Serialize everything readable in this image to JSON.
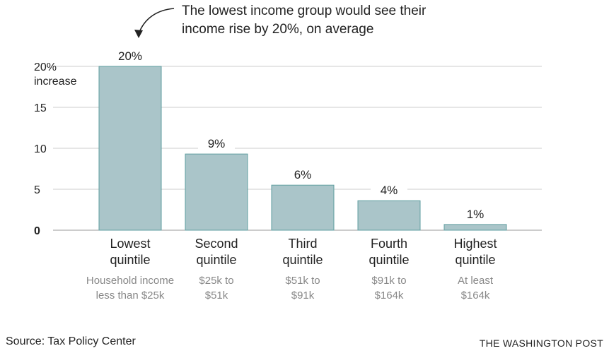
{
  "chart_data": {
    "type": "bar",
    "categories": [
      "Lowest quintile",
      "Second quintile",
      "Third quintile",
      "Fourth quintile",
      "Highest quintile"
    ],
    "category_lines": [
      [
        "Lowest",
        "quintile"
      ],
      [
        "Second",
        "quintile"
      ],
      [
        "Third",
        "quintile"
      ],
      [
        "Fourth",
        "quintile"
      ],
      [
        "Highest",
        "quintile"
      ]
    ],
    "sublabels": [
      [
        "Household income",
        "less than $25k"
      ],
      [
        "$25k to",
        "$51k"
      ],
      [
        "$51k to",
        "$91k"
      ],
      [
        "$91k to",
        "$164k"
      ],
      [
        "At least",
        "$164k"
      ]
    ],
    "values": [
      20,
      9.3,
      5.5,
      3.6,
      0.7
    ],
    "data_labels": [
      "20%",
      "9%",
      "6%",
      "4%",
      "1%"
    ],
    "yticks": [
      0,
      5,
      10,
      15,
      20
    ],
    "ytick_labels": [
      "0",
      "5",
      "10",
      "15",
      "20%"
    ],
    "ylabel": "increase",
    "ylim": [
      0,
      20
    ],
    "grid": true,
    "annotation": [
      "The lowest income group would see their",
      "income rise by 20%, on average"
    ],
    "colors": {
      "bar_fill": "#aac5c9",
      "bar_stroke": "#5f9ea0",
      "grid": "#cccccc",
      "axis": "#999999"
    }
  },
  "source": "Source: Tax Policy Center",
  "brand": "THE WASHINGTON POST"
}
